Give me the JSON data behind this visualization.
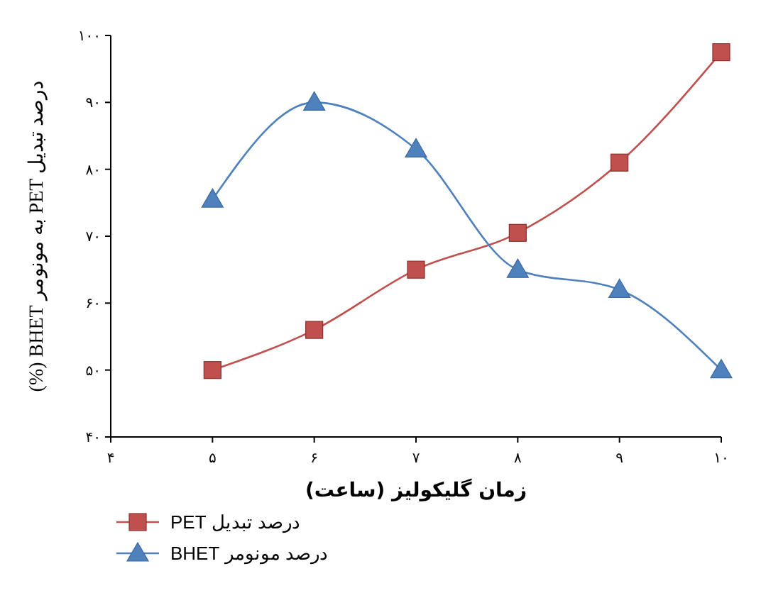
{
  "chart_data": {
    "type": "line",
    "xlabel": "زمان گلیکولیز (ساعت)",
    "ylabel": "درصد تبدیل PET به مونومر BHET (%)",
    "x": [
      5,
      6,
      7,
      8,
      9,
      10
    ],
    "series": [
      {
        "name": "درصد تبدیل PET",
        "color": "#c0504d",
        "marker": "square",
        "values": [
          50,
          56,
          65,
          70.5,
          81,
          97.5
        ]
      },
      {
        "name": "درصد مونومر BHET",
        "color": "#4f81bd",
        "marker": "triangle",
        "values": [
          75.5,
          90,
          83,
          65,
          62,
          50
        ]
      }
    ],
    "xlim": [
      4,
      10
    ],
    "xticks": [
      {
        "value": 4,
        "label": "۴"
      },
      {
        "value": 5,
        "label": "۵"
      },
      {
        "value": 6,
        "label": "۶"
      },
      {
        "value": 7,
        "label": "۷"
      },
      {
        "value": 8,
        "label": "۸"
      },
      {
        "value": 9,
        "label": "۹"
      },
      {
        "value": 10,
        "label": "۱۰"
      }
    ],
    "ylim": [
      40,
      100
    ],
    "yticks": [
      {
        "value": 40,
        "label": "۴۰"
      },
      {
        "value": 50,
        "label": "۵۰"
      },
      {
        "value": 60,
        "label": "۶۰"
      },
      {
        "value": 70,
        "label": "۷۰"
      },
      {
        "value": 80,
        "label": "۸۰"
      },
      {
        "value": 90,
        "label": "۹۰"
      },
      {
        "value": 100,
        "label": "۱۰۰"
      }
    ],
    "grid": false,
    "legend": "bottom left",
    "line_style": "solid"
  }
}
